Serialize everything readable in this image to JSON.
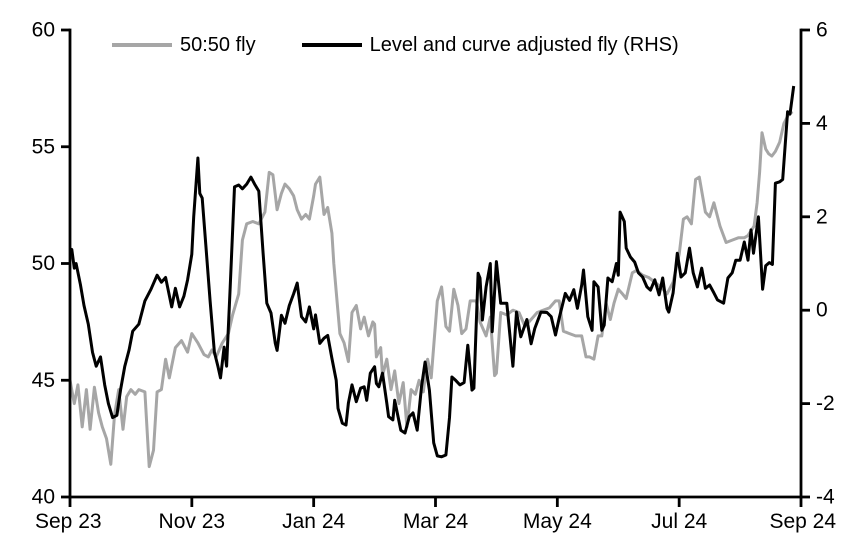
{
  "window": {
    "background": "#ffffff"
  },
  "legend": {
    "items": [
      {
        "label": "50:50 fly",
        "color": "#a6a6a6"
      },
      {
        "label": "Level and curve adjusted fly (RHS)",
        "color": "#000000"
      }
    ]
  },
  "chart_data": {
    "type": "line",
    "title": "",
    "grid": false,
    "legend_position": "top-center",
    "x_axis": {
      "domain_months": [
        0,
        12
      ],
      "tick_positions_months": [
        0,
        2,
        4,
        6,
        8,
        10,
        12
      ],
      "tick_labels": [
        "Sep 23",
        "Nov 23",
        "Jan 24",
        "Mar 24",
        "May 24",
        "Jul 24",
        "Sep 24"
      ]
    },
    "left_axis": {
      "range": [
        40,
        60
      ],
      "ticks": [
        40,
        45,
        50,
        55,
        60
      ]
    },
    "right_axis": {
      "range": [
        -4,
        6
      ],
      "ticks": [
        -4,
        -2,
        0,
        2,
        4,
        6
      ]
    },
    "series": [
      {
        "name": "50:50 fly",
        "axis": "left",
        "color": "#a6a6a6",
        "stroke_width": 3,
        "x": [
          0,
          0.07,
          0.13,
          0.2,
          0.27,
          0.33,
          0.4,
          0.47,
          0.53,
          0.6,
          0.67,
          0.73,
          0.8,
          0.87,
          0.93,
          1.0,
          1.07,
          1.13,
          1.23,
          1.3,
          1.37,
          1.43,
          1.5,
          1.57,
          1.63,
          1.73,
          1.83,
          1.93,
          2.0,
          2.1,
          2.2,
          2.27,
          2.33,
          2.4,
          2.5,
          2.6,
          2.67,
          2.77,
          2.83,
          2.9,
          3.0,
          3.1,
          3.2,
          3.27,
          3.33,
          3.4,
          3.47,
          3.53,
          3.6,
          3.67,
          3.73,
          3.8,
          3.87,
          3.93,
          4.0,
          4.03,
          4.1,
          4.17,
          4.23,
          4.3,
          4.33,
          4.37,
          4.43,
          4.5,
          4.57,
          4.63,
          4.7,
          4.77,
          4.83,
          4.9,
          4.97,
          5.0,
          5.03,
          5.1,
          5.13,
          5.2,
          5.27,
          5.33,
          5.4,
          5.47,
          5.53,
          5.6,
          5.67,
          5.73,
          5.8,
          5.87,
          5.93,
          6.03,
          6.1,
          6.17,
          6.23,
          6.3,
          6.37,
          6.43,
          6.5,
          6.57,
          6.67,
          6.73,
          6.83,
          6.9,
          6.97,
          7.0,
          7.07,
          7.17,
          7.27,
          7.37,
          7.47,
          7.57,
          7.67,
          7.77,
          7.87,
          7.97,
          8.03,
          8.1,
          8.2,
          8.3,
          8.4,
          8.47,
          8.53,
          8.6,
          8.67,
          8.73,
          8.8,
          8.87,
          8.93,
          9.0,
          9.07,
          9.13,
          9.23,
          9.3,
          9.4,
          9.5,
          9.6,
          9.7,
          9.8,
          9.9,
          10.0,
          10.07,
          10.13,
          10.2,
          10.27,
          10.33,
          10.43,
          10.5,
          10.57,
          10.67,
          10.77,
          10.87,
          10.97,
          11.07,
          11.13,
          11.23,
          11.28,
          11.32,
          11.36,
          11.42,
          11.47,
          11.52,
          11.58,
          11.65,
          11.72,
          11.8,
          11.86
        ],
        "values": [
          45.0,
          44.0,
          44.8,
          43.0,
          44.6,
          42.9,
          44.7,
          43.6,
          43.0,
          42.5,
          41.4,
          43.5,
          44.6,
          42.9,
          44.3,
          44.6,
          44.4,
          44.6,
          44.5,
          41.3,
          42.0,
          44.5,
          44.6,
          45.9,
          45.1,
          46.4,
          46.7,
          46.2,
          47.0,
          46.6,
          46.1,
          46.0,
          46.3,
          46.0,
          46.6,
          47.0,
          47.8,
          48.7,
          51.0,
          51.7,
          51.8,
          51.7,
          52.2,
          53.9,
          53.8,
          52.3,
          53.0,
          53.4,
          53.2,
          52.9,
          52.3,
          51.9,
          52.1,
          51.9,
          52.9,
          53.4,
          53.7,
          52.1,
          52.4,
          51.3,
          50.0,
          48.8,
          47.0,
          46.6,
          45.8,
          47.9,
          48.2,
          47.2,
          47.7,
          46.9,
          47.5,
          47.4,
          46.0,
          46.4,
          45.2,
          45.9,
          44.6,
          45.4,
          44.0,
          44.9,
          43.0,
          44.6,
          44.4,
          45.0,
          44.5,
          45.9,
          45.1,
          48.4,
          49.0,
          47.3,
          47.1,
          48.9,
          48.2,
          47.0,
          47.2,
          48.4,
          48.4,
          47.5,
          46.9,
          47.7,
          45.2,
          45.3,
          47.9,
          47.8,
          48.0,
          47.9,
          47.3,
          47.6,
          47.9,
          48.0,
          48.1,
          48.4,
          48.4,
          47.1,
          47.0,
          46.9,
          46.9,
          46.0,
          46.0,
          45.9,
          46.9,
          46.9,
          48.3,
          47.6,
          48.3,
          48.9,
          48.7,
          48.5,
          49.6,
          49.7,
          49.5,
          49.4,
          49.2,
          49.0,
          48.7,
          49.2,
          50.4,
          51.9,
          52.0,
          51.7,
          53.6,
          53.7,
          52.2,
          52.0,
          52.6,
          51.6,
          50.9,
          51.0,
          51.1,
          51.1,
          51.2,
          51.6,
          52.6,
          53.9,
          55.6,
          54.9,
          54.7,
          54.6,
          54.8,
          55.2,
          56.0,
          56.4,
          56.5
        ]
      },
      {
        "name": "Level and curve adjusted fly (RHS)",
        "axis": "right",
        "color": "#000000",
        "stroke_width": 3,
        "x": [
          0,
          0.03,
          0.07,
          0.1,
          0.17,
          0.23,
          0.3,
          0.37,
          0.43,
          0.5,
          0.57,
          0.63,
          0.7,
          0.77,
          0.83,
          0.9,
          0.97,
          1.03,
          1.13,
          1.23,
          1.33,
          1.43,
          1.5,
          1.57,
          1.67,
          1.73,
          1.8,
          1.87,
          1.93,
          2.0,
          2.03,
          2.1,
          2.13,
          2.17,
          2.23,
          2.3,
          2.37,
          2.43,
          2.47,
          2.53,
          2.57,
          2.63,
          2.7,
          2.77,
          2.83,
          2.9,
          2.97,
          3.03,
          3.1,
          3.17,
          3.23,
          3.3,
          3.37,
          3.4,
          3.47,
          3.53,
          3.6,
          3.67,
          3.73,
          3.8,
          3.87,
          3.93,
          4.0,
          4.03,
          4.1,
          4.17,
          4.23,
          4.3,
          4.37,
          4.4,
          4.47,
          4.53,
          4.57,
          4.63,
          4.7,
          4.77,
          4.83,
          4.87,
          4.93,
          5.0,
          5.03,
          5.07,
          5.13,
          5.2,
          5.23,
          5.3,
          5.33,
          5.43,
          5.5,
          5.57,
          5.63,
          5.7,
          5.77,
          5.83,
          5.9,
          5.97,
          6.03,
          6.1,
          6.17,
          6.23,
          6.27,
          6.33,
          6.4,
          6.47,
          6.53,
          6.6,
          6.63,
          6.7,
          6.73,
          6.77,
          6.83,
          6.9,
          6.93,
          7.0,
          7.07,
          7.17,
          7.27,
          7.33,
          7.4,
          7.5,
          7.57,
          7.63,
          7.73,
          7.83,
          7.9,
          7.97,
          8.03,
          8.13,
          8.2,
          8.27,
          8.33,
          8.4,
          8.43,
          8.5,
          8.57,
          8.6,
          8.67,
          8.73,
          8.77,
          8.83,
          8.9,
          8.97,
          9.0,
          9.03,
          9.1,
          9.13,
          9.2,
          9.27,
          9.33,
          9.4,
          9.47,
          9.53,
          9.6,
          9.67,
          9.73,
          9.8,
          9.83,
          9.9,
          9.97,
          10.03,
          10.1,
          10.17,
          10.23,
          10.3,
          10.37,
          10.43,
          10.5,
          10.57,
          10.63,
          10.73,
          10.8,
          10.87,
          10.93,
          11.0,
          11.07,
          11.13,
          11.18,
          11.22,
          11.3,
          11.37,
          11.42,
          11.48,
          11.53,
          11.58,
          11.65,
          11.7,
          11.78,
          11.82,
          11.88
        ],
        "values": [
          1.25,
          1.3,
          0.9,
          1.0,
          0.55,
          0.1,
          -0.3,
          -0.9,
          -1.2,
          -1.0,
          -1.6,
          -2.0,
          -2.3,
          -2.25,
          -1.7,
          -1.2,
          -0.85,
          -0.45,
          -0.3,
          0.2,
          0.45,
          0.75,
          0.6,
          0.7,
          0.07,
          0.47,
          0.07,
          0.3,
          0.65,
          1.2,
          2.0,
          3.26,
          2.5,
          2.4,
          1.4,
          0.2,
          -0.9,
          -1.21,
          -1.45,
          -0.79,
          -1.2,
          0.5,
          2.64,
          2.68,
          2.6,
          2.7,
          2.85,
          2.7,
          2.55,
          1.22,
          0.15,
          -0.06,
          -0.71,
          -0.86,
          -0.11,
          -0.28,
          0.1,
          0.35,
          0.58,
          -0.14,
          -0.25,
          0.07,
          -0.4,
          -0.1,
          -0.71,
          -0.6,
          -0.54,
          -1.03,
          -1.5,
          -2.1,
          -2.42,
          -2.46,
          -1.99,
          -1.6,
          -1.96,
          -1.67,
          -1.64,
          -1.93,
          -1.35,
          -1.21,
          -1.57,
          -1.64,
          -1.35,
          -1.99,
          -2.28,
          -2.35,
          -1.93,
          -2.57,
          -2.63,
          -2.28,
          -2.2,
          -2.57,
          -1.64,
          -1.11,
          -1.71,
          -2.84,
          -3.12,
          -3.14,
          -3.1,
          -2.3,
          -1.43,
          -1.5,
          -1.6,
          -1.55,
          -0.75,
          -1.71,
          -1.67,
          0.79,
          0.69,
          -0.21,
          0.5,
          1.0,
          -0.46,
          1.04,
          0.15,
          0.15,
          -1.2,
          -0.04,
          -0.57,
          -0.2,
          -0.72,
          -0.39,
          -0.04,
          -0.05,
          -0.14,
          -0.53,
          -0.17,
          0.36,
          0.21,
          0.44,
          0.04,
          0.54,
          0.86,
          -0.14,
          -0.43,
          0.61,
          0.5,
          -0.43,
          -0.32,
          0.69,
          0.61,
          1.0,
          0.75,
          2.1,
          1.9,
          1.33,
          1.14,
          1.03,
          0.8,
          0.71,
          0.5,
          0.43,
          0.65,
          0.33,
          0.69,
          0.04,
          -0.04,
          0.37,
          1.22,
          0.71,
          0.8,
          1.33,
          0.8,
          0.5,
          0.9,
          0.47,
          0.54,
          0.37,
          0.22,
          0.15,
          0.69,
          0.8,
          1.07,
          1.07,
          1.46,
          1.07,
          1.72,
          1.22,
          2.0,
          0.45,
          0.95,
          1.02,
          0.98,
          2.72,
          2.75,
          2.8,
          4.25,
          4.2,
          4.8
        ]
      }
    ]
  },
  "style": {
    "axis_color": "#000000",
    "tick_label_size": 21,
    "axis_stroke_width": 2.8
  }
}
